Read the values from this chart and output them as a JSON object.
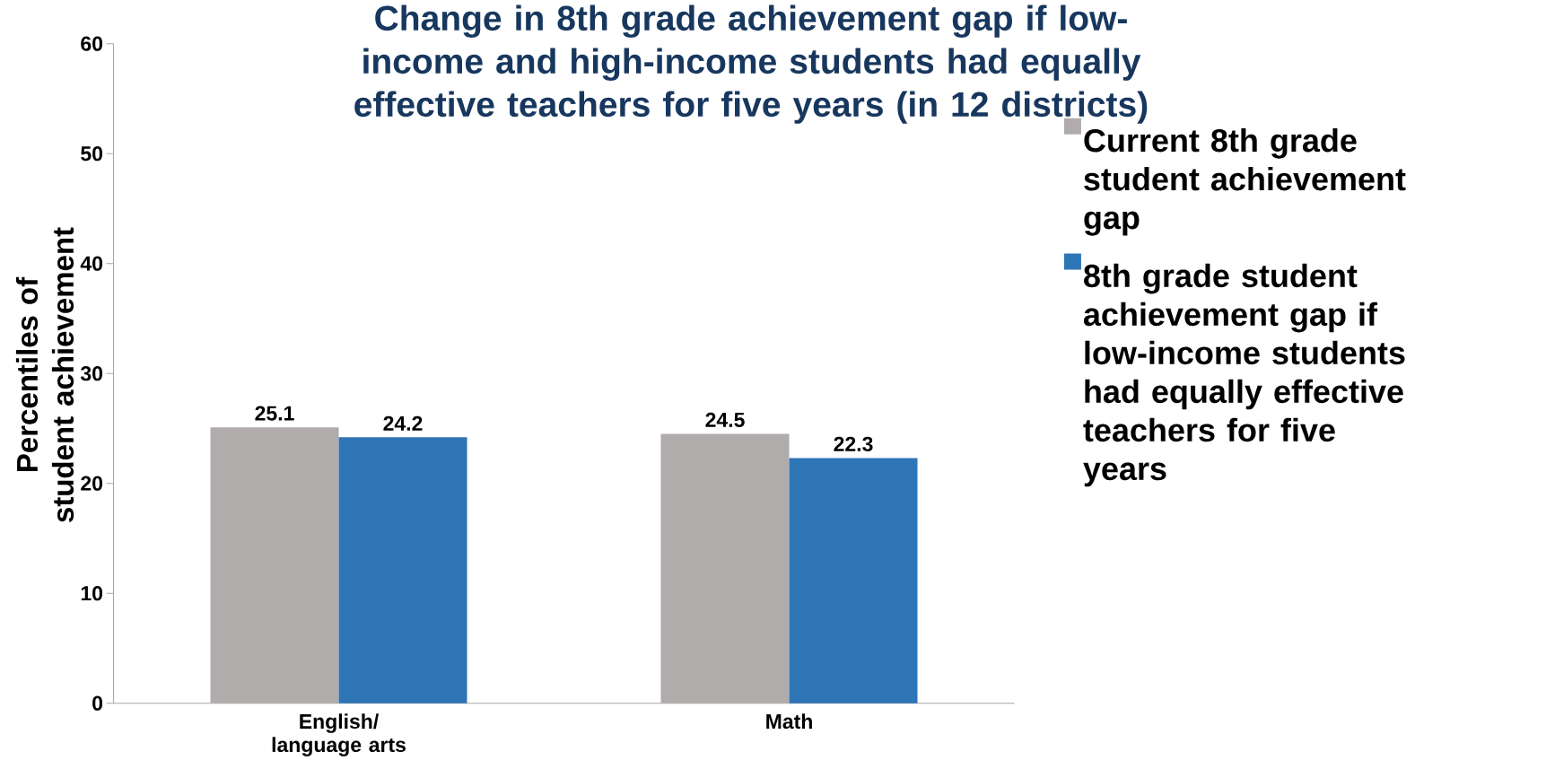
{
  "chart_data": {
    "type": "bar",
    "title": "Change in 8th grade achievement gap if low-income and high-income students had equally effective teachers for five years (in 12 districts)",
    "ylabel": "Percentiles of student achievement",
    "categories": [
      "English/ language arts",
      "Math"
    ],
    "series": [
      {
        "name": "Current 8th grade student achievement gap",
        "color": "#b0acac",
        "values": [
          25.1,
          24.5
        ]
      },
      {
        "name": "8th grade student achievement gap if low-income students had equally effective teachers for five years",
        "color": "#2e75b6",
        "values": [
          24.2,
          22.3
        ]
      }
    ],
    "ylim": [
      0,
      60
    ],
    "yticks": [
      0,
      10,
      20,
      30,
      40,
      50,
      60
    ],
    "data_labels": true,
    "legend": "right"
  }
}
